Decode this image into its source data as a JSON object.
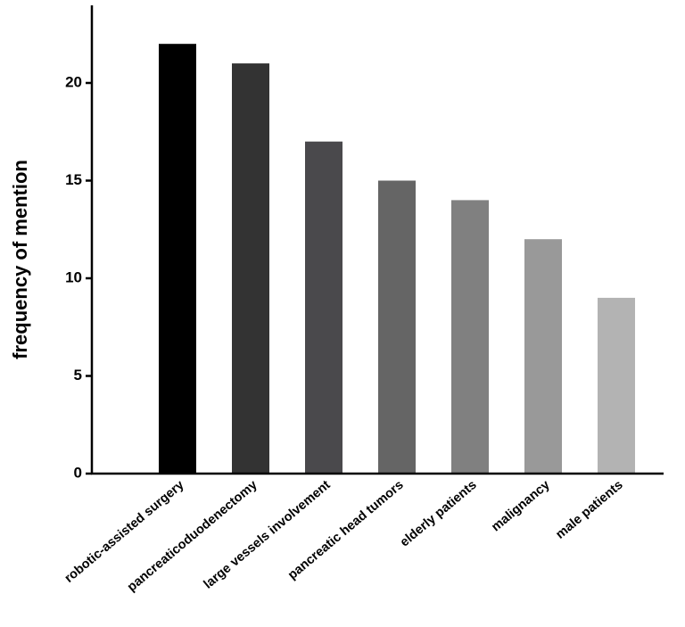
{
  "chart_data": {
    "type": "bar",
    "title": "",
    "xlabel": "",
    "ylabel": "frequency of mention",
    "ylim": [
      0,
      24
    ],
    "yticks": [
      0,
      5,
      10,
      15,
      20
    ],
    "grid": false,
    "categories": [
      "robotic-assisted surgery",
      "pancreaticoduodenectomy",
      "large vessels involvement",
      "pancreatic head tumors",
      "elderly patients",
      "malignancy",
      "male patients"
    ],
    "values": [
      22,
      21,
      17,
      15,
      14,
      12,
      9
    ],
    "colors": [
      "#000000",
      "#333333",
      "#4a494c",
      "#656565",
      "#808080",
      "#999999",
      "#b3b3b3"
    ]
  }
}
